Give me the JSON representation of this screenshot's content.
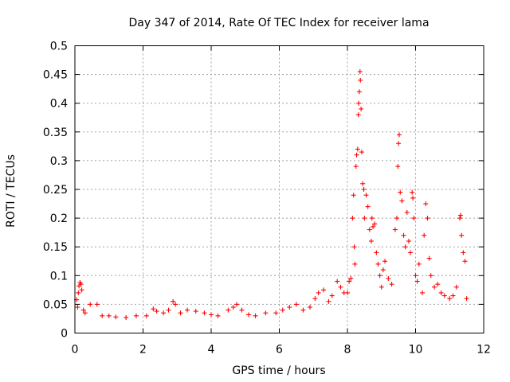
{
  "chart_data": {
    "type": "scatter",
    "title": "Day 347 of 2014, Rate Of TEC Index for receiver lama",
    "xlabel": "GPS time / hours",
    "ylabel": "ROTI / TECUs",
    "xlim": [
      0,
      12
    ],
    "ylim": [
      0,
      0.5
    ],
    "x_ticks": [
      0,
      2,
      4,
      6,
      8,
      10,
      12
    ],
    "x_tick_labels": [
      "0",
      "2",
      "4",
      "6",
      "8",
      "10",
      "12"
    ],
    "y_ticks": [
      0,
      0.05,
      0.1,
      0.15,
      0.2,
      0.25,
      0.3,
      0.35,
      0.4,
      0.45,
      0.5
    ],
    "y_tick_labels": [
      "0",
      "0.05",
      "0.1",
      "0.15",
      "0.2",
      "0.25",
      "0.3",
      "0.35",
      "0.4",
      "0.45",
      "0.5"
    ],
    "grid": true,
    "marker": "+",
    "marker_color": "#ff0000",
    "series": [
      {
        "name": "ROTI",
        "points": [
          [
            0.05,
            0.058
          ],
          [
            0.08,
            0.045
          ],
          [
            0.1,
            0.07
          ],
          [
            0.12,
            0.082
          ],
          [
            0.15,
            0.088
          ],
          [
            0.18,
            0.085
          ],
          [
            0.2,
            0.075
          ],
          [
            0.25,
            0.04
          ],
          [
            0.3,
            0.035
          ],
          [
            0.45,
            0.05
          ],
          [
            0.65,
            0.05
          ],
          [
            0.8,
            0.03
          ],
          [
            1.0,
            0.03
          ],
          [
            1.2,
            0.028
          ],
          [
            1.5,
            0.027
          ],
          [
            1.8,
            0.03
          ],
          [
            2.1,
            0.03
          ],
          [
            2.3,
            0.042
          ],
          [
            2.4,
            0.038
          ],
          [
            2.6,
            0.035
          ],
          [
            2.75,
            0.04
          ],
          [
            2.88,
            0.055
          ],
          [
            2.95,
            0.05
          ],
          [
            3.1,
            0.035
          ],
          [
            3.3,
            0.04
          ],
          [
            3.55,
            0.038
          ],
          [
            3.8,
            0.035
          ],
          [
            4.0,
            0.032
          ],
          [
            4.2,
            0.03
          ],
          [
            4.5,
            0.04
          ],
          [
            4.65,
            0.045
          ],
          [
            4.75,
            0.05
          ],
          [
            4.9,
            0.04
          ],
          [
            5.1,
            0.032
          ],
          [
            5.3,
            0.03
          ],
          [
            5.6,
            0.035
          ],
          [
            5.9,
            0.035
          ],
          [
            6.1,
            0.04
          ],
          [
            6.3,
            0.045
          ],
          [
            6.5,
            0.05
          ],
          [
            6.7,
            0.04
          ],
          [
            6.9,
            0.045
          ],
          [
            7.05,
            0.06
          ],
          [
            7.15,
            0.07
          ],
          [
            7.3,
            0.075
          ],
          [
            7.45,
            0.055
          ],
          [
            7.55,
            0.065
          ],
          [
            7.7,
            0.09
          ],
          [
            7.8,
            0.08
          ],
          [
            7.9,
            0.07
          ],
          [
            8.0,
            0.07
          ],
          [
            8.05,
            0.09
          ],
          [
            8.1,
            0.095
          ],
          [
            8.15,
            0.2
          ],
          [
            8.18,
            0.24
          ],
          [
            8.2,
            0.15
          ],
          [
            8.22,
            0.12
          ],
          [
            8.25,
            0.29
          ],
          [
            8.27,
            0.31
          ],
          [
            8.3,
            0.32
          ],
          [
            8.32,
            0.38
          ],
          [
            8.33,
            0.4
          ],
          [
            8.35,
            0.42
          ],
          [
            8.37,
            0.455
          ],
          [
            8.38,
            0.44
          ],
          [
            8.4,
            0.39
          ],
          [
            8.42,
            0.315
          ],
          [
            8.45,
            0.26
          ],
          [
            8.48,
            0.25
          ],
          [
            8.5,
            0.2
          ],
          [
            8.55,
            0.24
          ],
          [
            8.6,
            0.22
          ],
          [
            8.65,
            0.18
          ],
          [
            8.7,
            0.16
          ],
          [
            8.72,
            0.2
          ],
          [
            8.75,
            0.185
          ],
          [
            8.8,
            0.19
          ],
          [
            8.85,
            0.14
          ],
          [
            8.9,
            0.12
          ],
          [
            8.95,
            0.1
          ],
          [
            9.0,
            0.08
          ],
          [
            9.05,
            0.11
          ],
          [
            9.1,
            0.125
          ],
          [
            9.2,
            0.095
          ],
          [
            9.3,
            0.085
          ],
          [
            9.4,
            0.18
          ],
          [
            9.45,
            0.2
          ],
          [
            9.48,
            0.29
          ],
          [
            9.5,
            0.33
          ],
          [
            9.52,
            0.345
          ],
          [
            9.55,
            0.245
          ],
          [
            9.6,
            0.23
          ],
          [
            9.65,
            0.17
          ],
          [
            9.7,
            0.15
          ],
          [
            9.75,
            0.21
          ],
          [
            9.8,
            0.16
          ],
          [
            9.85,
            0.14
          ],
          [
            9.9,
            0.245
          ],
          [
            9.92,
            0.235
          ],
          [
            9.95,
            0.2
          ],
          [
            10.0,
            0.1
          ],
          [
            10.05,
            0.09
          ],
          [
            10.1,
            0.12
          ],
          [
            10.2,
            0.07
          ],
          [
            10.25,
            0.17
          ],
          [
            10.3,
            0.225
          ],
          [
            10.35,
            0.2
          ],
          [
            10.4,
            0.13
          ],
          [
            10.45,
            0.1
          ],
          [
            10.55,
            0.08
          ],
          [
            10.65,
            0.085
          ],
          [
            10.75,
            0.07
          ],
          [
            10.85,
            0.065
          ],
          [
            11.0,
            0.06
          ],
          [
            11.1,
            0.065
          ],
          [
            11.2,
            0.08
          ],
          [
            11.3,
            0.2
          ],
          [
            11.32,
            0.205
          ],
          [
            11.35,
            0.17
          ],
          [
            11.4,
            0.14
          ],
          [
            11.45,
            0.125
          ],
          [
            11.5,
            0.06
          ]
        ]
      }
    ]
  }
}
